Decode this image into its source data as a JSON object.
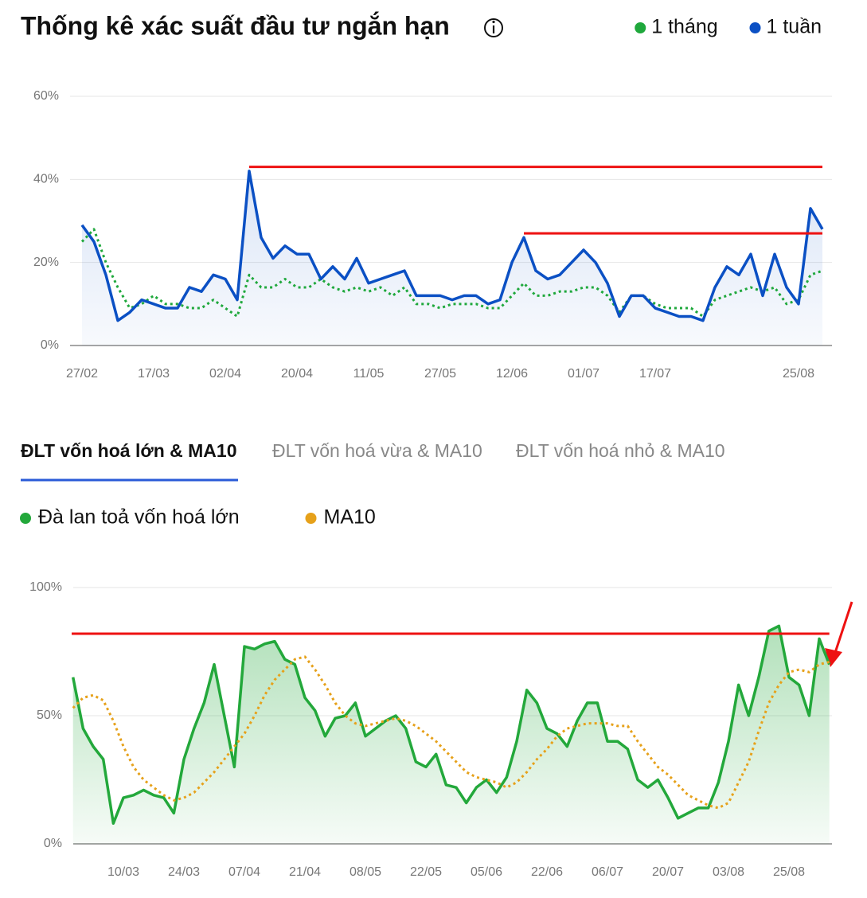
{
  "header": {
    "title": "Thống kê xác suất đầu tư ngắn hạn"
  },
  "tabs": [
    "ĐLT vốn hoá lớn & MA10",
    "ĐLT vốn hoá vừa & MA10",
    "ĐLT vốn hoá nhỏ & MA10"
  ],
  "active_tab": 0,
  "chart_data": [
    {
      "type": "line",
      "categories": [
        "27/02",
        null,
        null,
        null,
        null,
        null,
        "17/03",
        null,
        null,
        null,
        null,
        null,
        "02/04",
        null,
        null,
        null,
        null,
        null,
        "20/04",
        null,
        null,
        null,
        null,
        null,
        "11/05",
        null,
        null,
        null,
        null,
        null,
        "27/05",
        null,
        null,
        null,
        null,
        null,
        "12/06",
        null,
        null,
        null,
        null,
        null,
        "01/07",
        null,
        null,
        null,
        null,
        null,
        "17/07",
        null,
        null,
        null,
        null,
        null,
        null,
        null,
        null,
        null,
        null,
        null,
        "25/08",
        null,
        null
      ],
      "series": [
        {
          "name": "1 tháng",
          "color": "#1fa83c",
          "line_style": "dotted",
          "fill": false,
          "values": [
            25,
            28,
            20,
            14,
            9,
            10,
            12,
            10,
            10,
            9,
            9,
            11,
            9,
            7,
            17,
            14,
            14,
            16,
            14,
            14,
            16,
            14,
            13,
            14,
            13,
            14,
            12,
            14,
            10,
            10,
            9,
            10,
            10,
            10,
            9,
            9,
            12,
            15,
            12,
            12,
            13,
            13,
            14,
            14,
            12,
            8,
            12,
            12,
            10,
            9,
            9,
            9,
            7,
            11,
            12,
            13,
            14,
            13,
            14,
            10,
            11,
            17,
            18
          ]
        },
        {
          "name": "1 tuần",
          "color": "#0b50c4",
          "line_style": "solid",
          "fill": true,
          "values": [
            29,
            25,
            17,
            6,
            8,
            11,
            10,
            9,
            9,
            14,
            13,
            17,
            16,
            11,
            42,
            26,
            21,
            24,
            22,
            22,
            16,
            19,
            16,
            21,
            15,
            16,
            17,
            18,
            12,
            12,
            12,
            11,
            12,
            12,
            10,
            11,
            20,
            26,
            18,
            16,
            17,
            20,
            23,
            20,
            15,
            7,
            12,
            12,
            9,
            8,
            7,
            7,
            6,
            14,
            19,
            17,
            22,
            12,
            22,
            14,
            10,
            33,
            28
          ]
        }
      ],
      "ylim": [
        0,
        60
      ],
      "yticks": [
        {
          "value": 0,
          "label": "0%"
        },
        {
          "value": 20,
          "label": "20%"
        },
        {
          "value": 40,
          "label": "40%"
        },
        {
          "value": 60,
          "label": "60%"
        }
      ],
      "grid": true,
      "legend": "top-right",
      "reference_lines": [
        {
          "value": 43,
          "from": 14,
          "to": 62,
          "color": "#ee1111"
        },
        {
          "value": 27,
          "from": 37,
          "to": 62,
          "color": "#ee1111"
        }
      ]
    },
    {
      "type": "line",
      "categories": [
        null,
        null,
        null,
        null,
        null,
        "10/03",
        null,
        null,
        null,
        null,
        null,
        "24/03",
        null,
        null,
        null,
        null,
        null,
        "07/04",
        null,
        null,
        null,
        null,
        null,
        "21/04",
        null,
        null,
        null,
        null,
        null,
        "08/05",
        null,
        null,
        null,
        null,
        null,
        "22/05",
        null,
        null,
        null,
        null,
        null,
        "05/06",
        null,
        null,
        null,
        null,
        null,
        "22/06",
        null,
        null,
        null,
        null,
        null,
        "06/07",
        null,
        null,
        null,
        null,
        null,
        "20/07",
        null,
        null,
        null,
        null,
        null,
        "03/08",
        null,
        null,
        null,
        null,
        null,
        "25/08",
        null,
        null,
        null,
        null
      ],
      "series": [
        {
          "name": "Đà lan toả vốn hoá lớn",
          "color": "#23a83b",
          "line_style": "solid",
          "fill": true,
          "values": [
            65,
            45,
            38,
            33,
            8,
            18,
            19,
            21,
            19,
            18,
            12,
            33,
            45,
            55,
            70,
            50,
            30,
            77,
            76,
            78,
            79,
            72,
            70,
            57,
            52,
            42,
            49,
            50,
            55,
            42,
            45,
            48,
            50,
            45,
            32,
            30,
            35,
            23,
            22,
            16,
            22,
            25,
            20,
            26,
            40,
            60,
            55,
            45,
            43,
            38,
            48,
            55,
            55,
            40,
            40,
            37,
            25,
            22,
            25,
            18,
            10,
            12,
            14,
            14,
            24,
            40,
            62,
            50,
            65,
            83,
            85,
            65,
            62,
            50,
            80,
            70
          ]
        },
        {
          "name": "MA10",
          "color": "#e6a11a",
          "line_style": "dotted",
          "fill": false,
          "values": [
            53,
            57,
            58,
            56,
            48,
            38,
            30,
            25,
            22,
            19,
            17,
            18,
            20,
            24,
            28,
            33,
            38,
            43,
            50,
            58,
            64,
            68,
            72,
            73,
            68,
            62,
            55,
            50,
            47,
            46,
            47,
            48,
            49,
            48,
            46,
            43,
            40,
            36,
            32,
            28,
            26,
            25,
            24,
            22,
            24,
            28,
            33,
            37,
            42,
            45,
            46,
            47,
            47,
            47,
            46,
            46,
            40,
            35,
            30,
            27,
            23,
            19,
            17,
            15,
            14,
            16,
            24,
            32,
            44,
            55,
            62,
            67,
            68,
            67,
            70,
            71
          ]
        }
      ],
      "ylim": [
        0,
        100
      ],
      "yticks": [
        {
          "value": 0,
          "label": "0%"
        },
        {
          "value": 50,
          "label": "50%"
        },
        {
          "value": 100,
          "label": "100%"
        }
      ],
      "grid": true,
      "legend": "top-left",
      "reference_lines": [
        {
          "value": 82,
          "from": 0,
          "to": 75,
          "color": "#ee1111"
        }
      ]
    }
  ]
}
